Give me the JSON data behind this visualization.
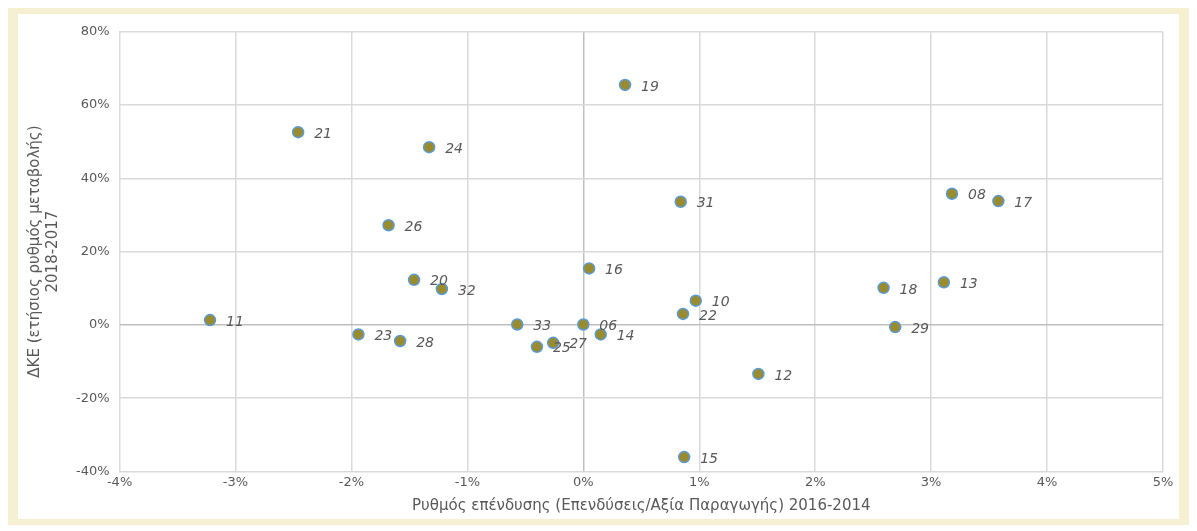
{
  "chart_data": {
    "type": "scatter",
    "xlabel": "Ρυθμός επένδυσης (Επενδύσεις/Αξία Παραγωγής) 2016-2014",
    "ylabel": "ΔΚΕ (ετήσιος ρυθμός μεταβολής)\n2018-2017",
    "xlim": [
      -4,
      5
    ],
    "xticks": [
      {
        "value": -4,
        "label": "-4%"
      },
      {
        "value": -3,
        "label": "-3%"
      },
      {
        "value": -2,
        "label": "-2%"
      },
      {
        "value": -1,
        "label": "-1%"
      },
      {
        "value": 0,
        "label": "0%"
      },
      {
        "value": 1,
        "label": "1%"
      },
      {
        "value": 2,
        "label": "2%"
      },
      {
        "value": 3,
        "label": "3%"
      },
      {
        "value": 4,
        "label": "4%"
      },
      {
        "value": 5,
        "label": "5%"
      }
    ],
    "ylim": [
      -40,
      80
    ],
    "yticks": [
      {
        "value": -40,
        "label": "-40%"
      },
      {
        "value": -20,
        "label": "-20%"
      },
      {
        "value": 0,
        "label": "0%"
      },
      {
        "value": 20,
        "label": "20%"
      },
      {
        "value": 40,
        "label": "40%"
      },
      {
        "value": 60,
        "label": "60%"
      },
      {
        "value": 80,
        "label": "80%"
      }
    ],
    "grid": true,
    "marker": "circle",
    "series": [
      {
        "color": "#9a8c2e",
        "x": [
          -2.46,
          -1.33,
          -1.68,
          0.36,
          0.84,
          3.18,
          3.58,
          -3.22,
          -1.46,
          -1.22,
          -1.94,
          -1.58,
          0.05,
          -0.57,
          0.0,
          0.15,
          -0.4,
          -0.26,
          0.97,
          0.86,
          1.51,
          0.87,
          2.59,
          3.11,
          2.69
        ],
        "values": [
          52.6,
          48.5,
          27.2,
          65.5,
          33.6,
          35.8,
          33.8,
          1.3,
          12.3,
          9.8,
          -2.6,
          -4.4,
          15.4,
          0.1,
          0.1,
          -2.6,
          -6.0,
          -4.9,
          6.6,
          3.0,
          -13.4,
          -36.1,
          10.1,
          11.6,
          -0.6
        ]
      }
    ],
    "annotations": [
      {
        "text": "21",
        "x": -2.46,
        "y": 52.6
      },
      {
        "text": "24",
        "x": -1.33,
        "y": 48.5
      },
      {
        "text": "26",
        "x": -1.68,
        "y": 27.2
      },
      {
        "text": "19",
        "x": 0.36,
        "y": 65.5
      },
      {
        "text": "31",
        "x": 0.84,
        "y": 33.6
      },
      {
        "text": "08",
        "x": 3.18,
        "y": 35.8
      },
      {
        "text": "17",
        "x": 3.58,
        "y": 33.8
      },
      {
        "text": "11",
        "x": -3.22,
        "y": 1.3
      },
      {
        "text": "20",
        "x": -1.46,
        "y": 12.3
      },
      {
        "text": "32",
        "x": -1.22,
        "y": 9.8
      },
      {
        "text": "23",
        "x": -1.94,
        "y": -2.6
      },
      {
        "text": "28",
        "x": -1.58,
        "y": -4.4
      },
      {
        "text": "16",
        "x": 0.05,
        "y": 15.4
      },
      {
        "text": "33",
        "x": -0.57,
        "y": 0.1
      },
      {
        "text": "06",
        "x": 0.0,
        "y": 0.1
      },
      {
        "text": "14",
        "x": 0.15,
        "y": -2.6
      },
      {
        "text": "25",
        "x": -0.4,
        "y": -6.0
      },
      {
        "text": "27",
        "x": -0.26,
        "y": -4.9
      },
      {
        "text": "10",
        "x": 0.97,
        "y": 6.6
      },
      {
        "text": "22",
        "x": 0.86,
        "y": 3.0
      },
      {
        "text": "12",
        "x": 1.51,
        "y": -13.4
      },
      {
        "text": "15",
        "x": 0.87,
        "y": -36.1
      },
      {
        "text": "18",
        "x": 2.59,
        "y": 10.1
      },
      {
        "text": "13",
        "x": 3.11,
        "y": 11.6
      },
      {
        "text": "29",
        "x": 2.69,
        "y": -0.6
      }
    ]
  }
}
